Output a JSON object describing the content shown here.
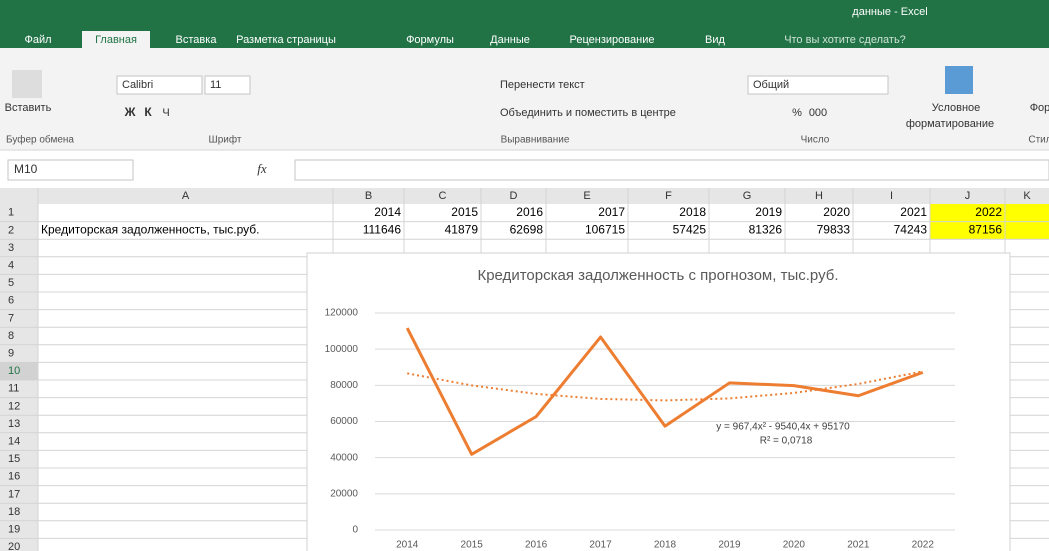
{
  "title_bar": {
    "title": "данные - Excel"
  },
  "tabs": [
    "Файл",
    "Главная",
    "Вставка",
    "Разметка страницы",
    "Формулы",
    "Данные",
    "Рецензирование",
    "Вид",
    "Что вы хотите сделать?"
  ],
  "ribbon": {
    "paste": "Вставить",
    "font_name": "Calibri",
    "font_size": "11",
    "bold": "Ж",
    "italic": "К",
    "underline": "Ч",
    "wrap": "Перенести текст",
    "merge": "Объединить и поместить в центре",
    "number_format": "Общий",
    "percent": "%",
    "thousands": "000",
    "cond_format_1": "Условное",
    "cond_format_2": "форматирование",
    "format_cut": "Фор",
    "groups": [
      "Буфер обмена",
      "Шрифт",
      "Выравнивание",
      "Число",
      "Стил"
    ]
  },
  "name_box": "M10",
  "fx": "fx",
  "sheet": {
    "columns": [
      "A",
      "B",
      "C",
      "D",
      "E",
      "F",
      "G",
      "H",
      "I",
      "J",
      "K"
    ],
    "row_numbers": [
      1,
      2,
      3,
      4,
      5,
      6,
      7,
      8,
      9,
      10,
      11,
      12,
      13,
      14,
      15,
      16,
      17,
      18,
      19,
      20
    ],
    "header_row": [
      2014,
      2015,
      2016,
      2017,
      2018,
      2019,
      2020,
      2021,
      2022
    ],
    "label": "Кредиторская задолженность, тыс.руб.",
    "values": [
      111646,
      41879,
      62698,
      106715,
      57425,
      81326,
      79833,
      74243,
      87156
    ]
  },
  "chart_data": {
    "type": "line",
    "title": "Кредиторская задолженность с прогнозом, тыс.руб.",
    "categories": [
      2014,
      2015,
      2016,
      2017,
      2018,
      2019,
      2020,
      2021,
      2022
    ],
    "series": [
      {
        "color": "#ed7d31",
        "values": [
          111646,
          41879,
          62698,
          106715,
          57425,
          81326,
          79833,
          74243,
          87156
        ]
      }
    ],
    "trendline": {
      "color": "#ed7d31",
      "values": [
        86597,
        79960,
        75258,
        72491,
        71660,
        72765,
        75804,
        80779,
        87690
      ]
    },
    "annotations": [
      "y = 967,4x² - 9540,4x + 95170",
      "R² = 0,0718"
    ],
    "ylim": [
      0,
      120000
    ],
    "yticks": [
      0,
      20000,
      40000,
      60000,
      80000,
      100000,
      120000
    ],
    "grid": true
  }
}
